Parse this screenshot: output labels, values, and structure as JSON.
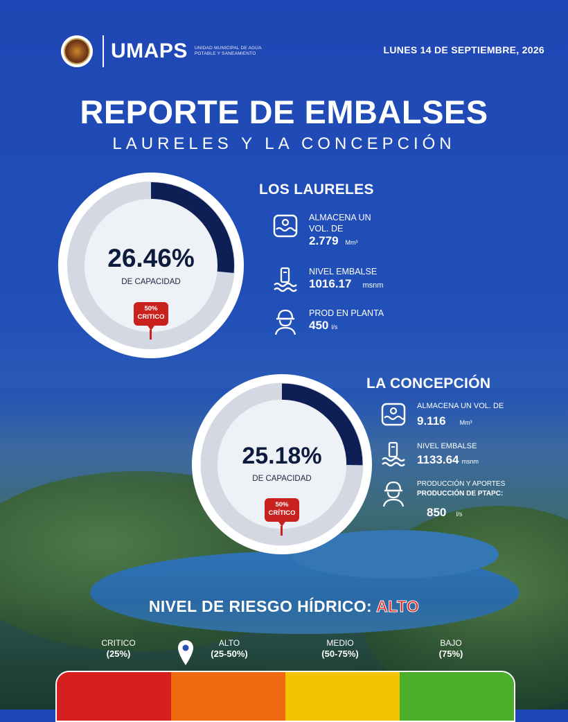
{
  "header": {
    "brand": "UMAPS",
    "brand_sub": "UNIDAD MUNICIPAL DE AGUA POTABLE Y SANEAMIENTO",
    "date": "LUNES 14 DE SEPTIEMBRE, 2026"
  },
  "title": "REPORTE DE EMBALSES",
  "subtitle": "LAURELES Y LA CONCEPCIÓN",
  "laureles": {
    "name": "LOS LAURELES",
    "percent": "26.46%",
    "percent_value": 26.46,
    "capacity_label": "DE CAPACIDAD",
    "badge_pct": "50%",
    "badge_text": "CRITICO",
    "stats": {
      "storage_label": "ALMACENA UN VOL. DE",
      "storage_value": "2.779",
      "storage_unit": "Mm³",
      "level_label": "NIVEL EMBALSE",
      "level_value": "1016.17",
      "level_unit": "msnm",
      "prod_label": "PROD EN PLANTA",
      "prod_value": "450",
      "prod_unit": "l/s"
    }
  },
  "concepcion": {
    "name": "LA CONCEPCIÓN",
    "percent": "25.18%",
    "percent_value": 25.18,
    "capacity_label": "DE CAPACIDAD",
    "badge_pct": "50%",
    "badge_text": "CRÍTICO",
    "stats": {
      "storage_label": "ALMACENA UN VOL. DE",
      "storage_value": "9.116",
      "storage_unit": "Mm³",
      "level_label": "NIVEL EMBALSE",
      "level_value": "1133.64",
      "level_unit": "msnm",
      "prod_label": "PRODUCCIÓN Y APORTES",
      "prod_label2": "PRODUCCIÓN DE PTAPC:",
      "prod_value": "850",
      "prod_unit": "l/s"
    }
  },
  "risk": {
    "label": "NIVEL DE RIESGO HÍDRICO:",
    "level": "ALTO",
    "scale": [
      {
        "name": "CRITICO",
        "range": "(25%)",
        "color": "#d61f1f"
      },
      {
        "name": "ALTO",
        "range": "(25-50%)",
        "color": "#f06a12"
      },
      {
        "name": "MEDIO",
        "range": "(50-75%)",
        "color": "#f5c400"
      },
      {
        "name": "BAJO",
        "range": "(75%)",
        "color": "#4caf2c"
      }
    ]
  },
  "colors": {
    "gauge_fill": "#0e1f55",
    "gauge_track": "#d3d8e2",
    "critical": "#c9221e"
  }
}
